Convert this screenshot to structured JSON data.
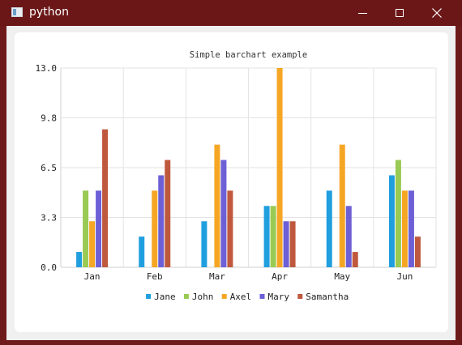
{
  "window": {
    "title": "python"
  },
  "chart_data": {
    "type": "bar",
    "title": "Simple barchart example",
    "categories": [
      "Jan",
      "Feb",
      "Mar",
      "Apr",
      "May",
      "Jun"
    ],
    "ylim": [
      0,
      13
    ],
    "yticks": [
      "0.0",
      "3.3",
      "6.5",
      "9.8",
      "13.0"
    ],
    "ytick_values": [
      0,
      3.25,
      6.5,
      9.75,
      13
    ],
    "grid": true,
    "legend_position": "bottom",
    "series": [
      {
        "name": "Jane",
        "color": "#209fdf",
        "values": [
          1,
          2,
          3,
          4,
          5,
          6
        ]
      },
      {
        "name": "John",
        "color": "#99ca53",
        "values": [
          5,
          0,
          0,
          4,
          0,
          7
        ]
      },
      {
        "name": "Axel",
        "color": "#f6a625",
        "values": [
          3,
          5,
          8,
          13,
          8,
          5
        ]
      },
      {
        "name": "Mary",
        "color": "#6d5fd5",
        "values": [
          5,
          6,
          7,
          3,
          4,
          5
        ]
      },
      {
        "name": "Samantha",
        "color": "#bf593e",
        "values": [
          9,
          7,
          5,
          3,
          1,
          2
        ]
      }
    ]
  }
}
